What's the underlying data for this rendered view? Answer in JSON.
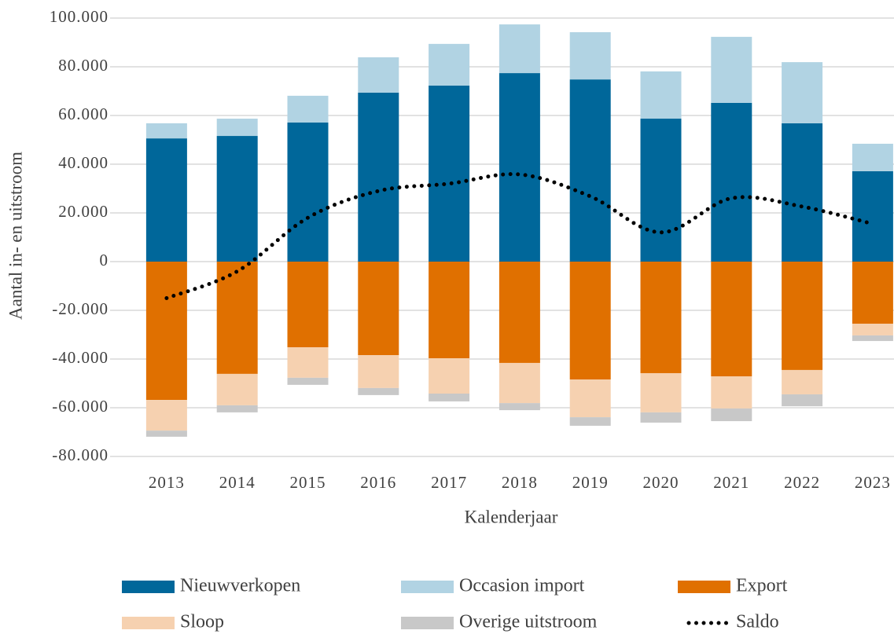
{
  "chart_data": {
    "type": "bar",
    "stacked": true,
    "x_label": "Kalenderjaar",
    "y_label": "Aantal in- en uitstroom",
    "categories": [
      "2013",
      "2014",
      "2015",
      "2016",
      "2017",
      "2018",
      "2019",
      "2020",
      "2021",
      "2022",
      "2023"
    ],
    "series": [
      {
        "name": "Nieuwverkopen",
        "color": "#00679a",
        "values": [
          50600,
          51600,
          57100,
          69400,
          72300,
          77400,
          74800,
          58700,
          65200,
          56800,
          37100
        ]
      },
      {
        "name": "Occasion import",
        "color": "#b1d3e3",
        "values": [
          6200,
          7100,
          11000,
          14500,
          17100,
          20000,
          19400,
          19400,
          27100,
          25100,
          11300
        ]
      },
      {
        "name": "Export",
        "color": "#e07000",
        "values": [
          -56800,
          -46100,
          -35200,
          -38400,
          -39700,
          -41600,
          -48400,
          -45800,
          -47100,
          -44500,
          -25500
        ]
      },
      {
        "name": "Sloop",
        "color": "#f6d1b0",
        "values": [
          -12600,
          -12900,
          -12500,
          -13500,
          -14500,
          -16500,
          -15500,
          -16100,
          -13200,
          -10000,
          -4800
        ]
      },
      {
        "name": "Overige uitstroom",
        "color": "#c8c8c8",
        "values": [
          -2500,
          -2900,
          -2900,
          -2900,
          -3200,
          -2900,
          -3500,
          -4200,
          -5200,
          -4900,
          -2300
        ]
      },
      {
        "name": "Saldo",
        "type": "line",
        "color": "#000000",
        "values": [
          -15000,
          -4000,
          18000,
          29000,
          32000,
          35800,
          26800,
          12000,
          26000,
          22600,
          15500
        ]
      }
    ],
    "ylim": [
      -80000,
      100000
    ],
    "yticks": [
      {
        "value": -80000,
        "label": "-80.000"
      },
      {
        "value": -60000,
        "label": "-60.000"
      },
      {
        "value": -40000,
        "label": "-40.000"
      },
      {
        "value": -20000,
        "label": "-20.000"
      },
      0,
      {
        "value": 20000,
        "label": "20.000"
      },
      {
        "value": 40000,
        "label": "40.000"
      },
      {
        "value": 60000,
        "label": "60.000"
      },
      {
        "value": 80000,
        "label": "80.000"
      },
      {
        "value": 100000,
        "label": "100.000"
      }
    ],
    "grid": true,
    "legend": "bottom"
  }
}
